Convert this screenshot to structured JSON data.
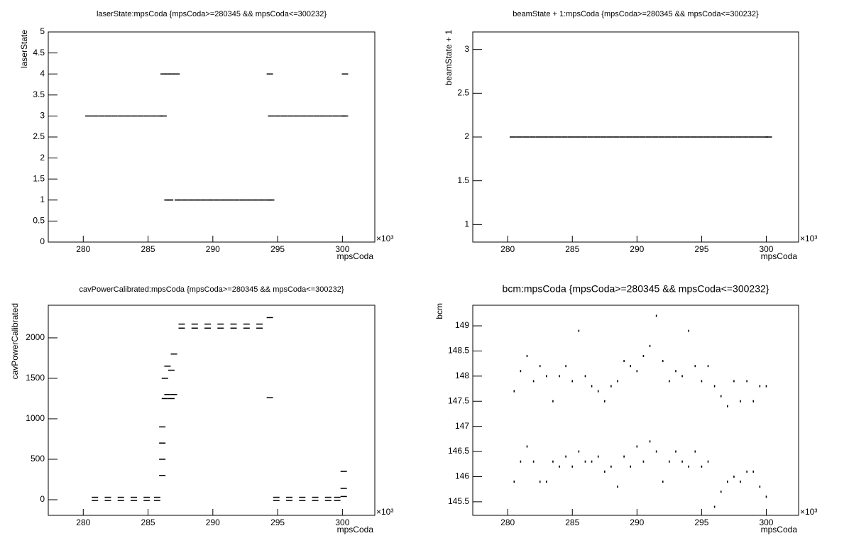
{
  "chart_data": [
    {
      "type": "scatter",
      "title": "laserState:mpsCoda {mpsCoda>=280345 && mpsCoda<=300232}",
      "x_label": "mpsCoda",
      "y_label": "laserState",
      "x_exponent": "×10³",
      "color": "#000000",
      "x": [
        280.4,
        280.9,
        281.4,
        281.9,
        282.4,
        282.9,
        283.4,
        283.9,
        284.4,
        284.9,
        285.4,
        285.9,
        286.2,
        286.2,
        286.5,
        286.8,
        287.2,
        286.5,
        286.7,
        287.3,
        287.8,
        288.3,
        288.8,
        289.3,
        289.8,
        290.3,
        290.8,
        291.3,
        291.8,
        292.3,
        292.8,
        293.3,
        293.8,
        294.3,
        294.5,
        294.5,
        295.0,
        295.5,
        296.0,
        296.5,
        297.0,
        297.5,
        298.0,
        298.5,
        299.0,
        299.5,
        300.0,
        300.2,
        294.4,
        300.2
      ],
      "values": [
        3,
        3,
        3,
        3,
        3,
        3,
        3,
        3,
        3,
        3,
        3,
        3,
        3,
        4,
        4,
        4,
        4,
        1,
        1,
        1,
        1,
        1,
        1,
        1,
        1,
        1,
        1,
        1,
        1,
        1,
        1,
        1,
        1,
        1,
        1,
        3,
        3,
        3,
        3,
        3,
        3,
        3,
        3,
        3,
        3,
        3,
        3,
        3,
        4,
        4
      ],
      "xlim": [
        277.3,
        302.5
      ],
      "xticks": [
        280,
        285,
        290,
        295,
        300
      ],
      "ylim": [
        0,
        5
      ],
      "yticks": [
        0,
        0.5,
        1,
        1.5,
        2,
        2.5,
        3,
        3.5,
        4,
        4.5,
        5
      ]
    },
    {
      "type": "scatter",
      "title": "beamState + 1:mpsCoda {mpsCoda>=280345 && mpsCoda<=300232}",
      "x_label": "mpsCoda",
      "y_label": "beamState + 1",
      "x_exponent": "×10³",
      "color": "#000000",
      "x": [
        280.4,
        280.9,
        281.4,
        281.9,
        282.4,
        282.9,
        283.4,
        283.9,
        284.4,
        284.9,
        285.4,
        285.9,
        286.4,
        286.9,
        287.4,
        287.9,
        288.4,
        288.9,
        289.4,
        289.9,
        290.4,
        290.9,
        291.4,
        291.9,
        292.4,
        292.9,
        293.4,
        293.9,
        294.4,
        294.9,
        295.4,
        295.9,
        296.4,
        296.9,
        297.4,
        297.9,
        298.4,
        298.9,
        299.4,
        299.9,
        300.2
      ],
      "values": [
        2,
        2,
        2,
        2,
        2,
        2,
        2,
        2,
        2,
        2,
        2,
        2,
        2,
        2,
        2,
        2,
        2,
        2,
        2,
        2,
        2,
        2,
        2,
        2,
        2,
        2,
        2,
        2,
        2,
        2,
        2,
        2,
        2,
        2,
        2,
        2,
        2,
        2,
        2,
        2,
        2
      ],
      "xlim": [
        277.3,
        302.5
      ],
      "xticks": [
        280,
        285,
        290,
        295,
        300
      ],
      "ylim": [
        0.8,
        3.2
      ],
      "yticks": [
        1,
        1.5,
        2,
        2.5,
        3
      ]
    },
    {
      "type": "scatter",
      "title": "cavPowerCalibrated:mpsCoda {mpsCoda>=280345 && mpsCoda<=300232}",
      "x_label": "mpsCoda",
      "y_label": "cavPowerCalibrated",
      "x_exponent": "×10³",
      "color": "#000000",
      "x": [
        280.9,
        280.9,
        281.9,
        281.9,
        282.9,
        282.9,
        283.9,
        283.9,
        284.9,
        284.9,
        285.7,
        285.7,
        286.1,
        286.1,
        286.1,
        286.1,
        286.3,
        286.3,
        286.5,
        286.5,
        286.8,
        286.8,
        287.0,
        287.0,
        287.6,
        287.6,
        288.6,
        288.6,
        289.6,
        289.6,
        290.6,
        290.6,
        291.6,
        291.6,
        292.6,
        292.6,
        293.6,
        293.6,
        294.4,
        294.4,
        294.9,
        294.9,
        295.9,
        295.9,
        296.9,
        296.9,
        297.9,
        297.9,
        298.9,
        298.9,
        299.6,
        299.6,
        300.1,
        300.1,
        300.1
      ],
      "values": [
        30,
        -10,
        30,
        -10,
        30,
        -10,
        30,
        -10,
        30,
        -10,
        30,
        -10,
        300,
        500,
        700,
        900,
        1250,
        1500,
        1300,
        1650,
        1250,
        1600,
        1300,
        1800,
        2170,
        2120,
        2170,
        2120,
        2170,
        2120,
        2170,
        2120,
        2170,
        2120,
        2170,
        2120,
        2170,
        2120,
        2250,
        1260,
        30,
        -10,
        30,
        -10,
        30,
        -10,
        30,
        -10,
        30,
        -10,
        30,
        -10,
        350,
        140,
        40
      ],
      "xlim": [
        277.3,
        302.5
      ],
      "xticks": [
        280,
        285,
        290,
        295,
        300
      ],
      "ylim": [
        -193,
        2403
      ],
      "yticks": [
        0,
        500,
        1000,
        1500,
        2000
      ]
    },
    {
      "type": "scatter",
      "title": "bcm:mpsCoda {mpsCoda>=280345 && mpsCoda<=300232}",
      "x_label": "mpsCoda",
      "y_label": "bcm",
      "x_exponent": "×10³",
      "color": "#000000",
      "x": [
        280.5,
        281,
        281.5,
        282,
        282.5,
        283,
        283.5,
        284,
        284.5,
        285,
        285.5,
        286,
        286.5,
        287,
        287.5,
        288,
        288.5,
        289,
        289.5,
        290,
        290.5,
        291,
        291.5,
        292,
        292.5,
        293,
        293.5,
        294,
        294.5,
        295,
        295.5,
        296,
        296.5,
        297,
        297.5,
        298,
        298.5,
        299,
        299.5,
        300,
        280.5,
        281,
        281.5,
        282,
        282.5,
        283,
        283.5,
        284,
        284.5,
        285,
        285.5,
        286,
        286.5,
        287,
        287.5,
        288,
        288.5,
        289,
        289.5,
        290,
        290.5,
        291,
        291.5,
        292,
        292.5,
        293,
        293.5,
        294,
        294.5,
        295,
        295.5,
        296,
        296.5,
        297,
        297.5,
        298,
        298.5,
        299,
        299.5,
        300
      ],
      "values": [
        147.7,
        148.1,
        148.4,
        147.9,
        148.2,
        148.0,
        147.5,
        148.0,
        148.2,
        147.9,
        148.9,
        148.0,
        147.8,
        147.7,
        147.5,
        147.8,
        147.9,
        148.3,
        148.2,
        148.1,
        148.4,
        148.6,
        149.2,
        148.3,
        147.9,
        148.1,
        148.0,
        148.9,
        148.2,
        147.9,
        148.2,
        147.8,
        147.6,
        147.4,
        147.9,
        147.5,
        147.9,
        147.5,
        147.8,
        147.8,
        145.9,
        146.3,
        146.6,
        146.3,
        145.9,
        145.9,
        146.3,
        146.2,
        146.4,
        146.2,
        146.5,
        146.3,
        146.3,
        146.4,
        146.1,
        146.2,
        145.8,
        146.4,
        146.2,
        146.6,
        146.3,
        146.7,
        146.5,
        145.9,
        146.3,
        146.5,
        146.3,
        146.2,
        146.5,
        146.2,
        146.3,
        145.4,
        145.7,
        145.9,
        146.0,
        145.9,
        146.1,
        146.1,
        145.8,
        145.6
      ],
      "xlim": [
        277.3,
        302.5
      ],
      "xticks": [
        280,
        285,
        290,
        295,
        300
      ],
      "ylim": [
        145.23,
        149.41
      ],
      "yticks": [
        145.5,
        146,
        146.5,
        147,
        147.5,
        148,
        148.5,
        149
      ]
    }
  ]
}
